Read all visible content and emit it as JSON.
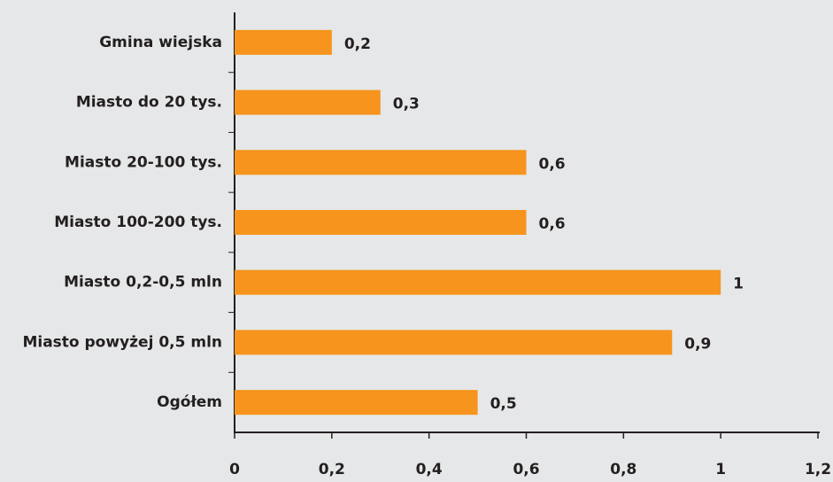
{
  "chart_data": {
    "type": "bar",
    "orientation": "horizontal",
    "categories": [
      "Gmina wiejska",
      "Miasto do 20 tys.",
      "Miasto 20-100 tys.",
      "Miasto 100-200 tys.",
      "Miasto 0,2-0,5 mln",
      "Miasto powyżej 0,5 mln",
      "Ogółem"
    ],
    "values": [
      0.2,
      0.3,
      0.6,
      0.6,
      1,
      0.9,
      0.5
    ],
    "value_labels": [
      "0,2",
      "0,3",
      "0,6",
      "0,6",
      "1",
      "0,9",
      "0,5"
    ],
    "color": "#f7941d",
    "xlim": [
      0,
      1.2
    ],
    "xticks": [
      0,
      {
        "value": 0.2,
        "label": "0,2"
      },
      {
        "value": 0.4,
        "label": "0,4"
      },
      {
        "value": 0.6,
        "label": "0,6"
      },
      {
        "value": 0.8,
        "label": "0,8"
      },
      1,
      {
        "value": 1.2,
        "label": "1,2"
      }
    ],
    "grid": false
  }
}
